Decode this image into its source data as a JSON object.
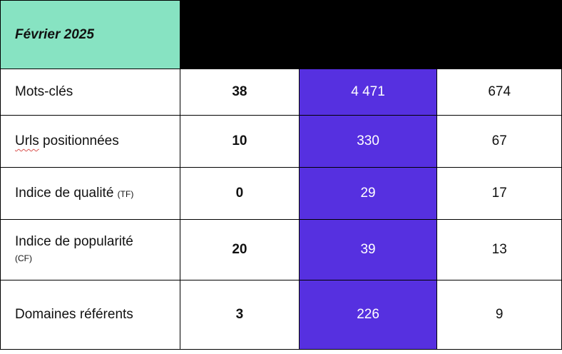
{
  "header": {
    "month": "Février 2025"
  },
  "rows": [
    {
      "label": "Mots-clés",
      "suffix": "",
      "values": [
        "38",
        "4 471",
        "674"
      ]
    },
    {
      "label": "Urls",
      "label_rest": " positionnées",
      "suffix": "",
      "values": [
        "10",
        "330",
        "67"
      ]
    },
    {
      "label": "Indice de qualité",
      "suffix": "(TF)",
      "values": [
        "0",
        "29",
        "17"
      ]
    },
    {
      "label": "Indice de popularité",
      "suffix": "(CF)",
      "values": [
        "20",
        "39",
        "13"
      ]
    },
    {
      "label": "Domaines référents",
      "suffix": "",
      "values": [
        "3",
        "226",
        "9"
      ]
    }
  ],
  "colors": {
    "month_bg": "#87e3c2",
    "highlight": "#5630e0",
    "header_bg": "#000000"
  }
}
